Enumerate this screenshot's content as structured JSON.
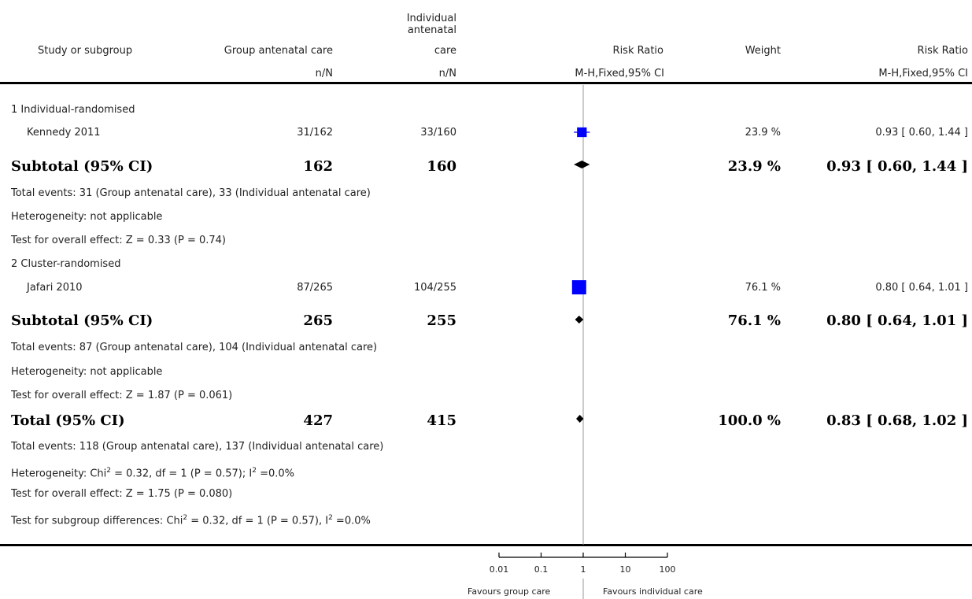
{
  "header": {
    "col_study": "Study or subgroup",
    "col_group": "Group antenatal care",
    "col_indiv_l1": "Individual",
    "col_indiv_l2": "antenatal",
    "col_indiv_l3": "care",
    "col_rr": "Risk Ratio",
    "col_weight": "Weight",
    "col_rr2": "Risk Ratio",
    "sub_group": "n/N",
    "sub_indiv": "n/N",
    "sub_rr": "M-H,Fixed,95% CI",
    "sub_rr2": "M-H,Fixed,95% CI"
  },
  "sub1": {
    "title": "1 Individual-randomised",
    "study_name": "Kennedy 2011",
    "study_group": "31/162",
    "study_indiv": "33/160",
    "study_weight": "23.9 %",
    "study_ci": "0.93 [ 0.60, 1.44 ]",
    "subtotal_label": "Subtotal (95% CI)",
    "subtotal_group": "162",
    "subtotal_indiv": "160",
    "subtotal_weight": "23.9 %",
    "subtotal_ci": "0.93 [ 0.60, 1.44 ]",
    "events": "Total events: 31 (Group antenatal care), 33 (Individual antenatal care)",
    "heterogeneity": "Heterogeneity: not applicable",
    "overall": "Test for overall effect: Z = 0.33 (P = 0.74)"
  },
  "sub2": {
    "title": "2 Cluster-randomised",
    "study_name": "Jafari 2010",
    "study_group": "87/265",
    "study_indiv": "104/255",
    "study_weight": "76.1 %",
    "study_ci": "0.80 [ 0.64, 1.01 ]",
    "subtotal_label": "Subtotal (95% CI)",
    "subtotal_group": "265",
    "subtotal_indiv": "255",
    "subtotal_weight": "76.1 %",
    "subtotal_ci": "0.80 [ 0.64, 1.01 ]",
    "events": "Total events: 87 (Group antenatal care), 104 (Individual antenatal care)",
    "heterogeneity": "Heterogeneity: not applicable",
    "overall": "Test for overall effect: Z = 1.87 (P = 0.061)"
  },
  "total": {
    "label": "Total (95% CI)",
    "group": "427",
    "indiv": "415",
    "weight": "100.0 %",
    "ci": "0.83 [ 0.68, 1.02 ]",
    "events": "Total events: 118 (Group antenatal care), 137 (Individual antenatal care)",
    "het_pre": "Heterogeneity: Chi",
    "het_mid": " = 0.32, df = 1 (P = 0.57); I",
    "het_post": " =0.0%",
    "overall": "Test for overall effect: Z = 1.75 (P = 0.080)",
    "sg_pre": "Test for subgroup differences: Chi",
    "sg_mid": " = 0.32, df = 1 (P = 0.57), I",
    "sg_post": " =0.0%",
    "sup": "2"
  },
  "axis": {
    "ticks": [
      "0.01",
      "0.1",
      "1",
      "10",
      "100"
    ],
    "favours_left": "Favours group care",
    "favours_right": "Favours individual care"
  },
  "chart_data": {
    "type": "forest",
    "scale": "log",
    "xlim": [
      0.01,
      100
    ],
    "x_ticks": [
      0.01,
      0.1,
      1,
      10,
      100
    ],
    "reference_line": 1,
    "colors": {
      "study_box": "#0000ff",
      "diamond": "#000000",
      "ci_line": "#0000ff"
    },
    "studies": [
      {
        "name": "Kennedy 2011",
        "subgroup": "1 Individual-randomised",
        "rr": 0.93,
        "lower": 0.6,
        "upper": 1.44,
        "weight": 23.9
      },
      {
        "name": "Jafari 2010",
        "subgroup": "2 Cluster-randomised",
        "rr": 0.8,
        "lower": 0.64,
        "upper": 1.01,
        "weight": 76.1
      }
    ],
    "summaries": [
      {
        "name": "Subtotal (95% CI)",
        "subgroup": "1 Individual-randomised",
        "rr": 0.93,
        "lower": 0.6,
        "upper": 1.44
      },
      {
        "name": "Subtotal (95% CI)",
        "subgroup": "2 Cluster-randomised",
        "rr": 0.8,
        "lower": 0.64,
        "upper": 1.01
      },
      {
        "name": "Total (95% CI)",
        "subgroup": "",
        "rr": 0.83,
        "lower": 0.68,
        "upper": 1.02
      }
    ]
  }
}
